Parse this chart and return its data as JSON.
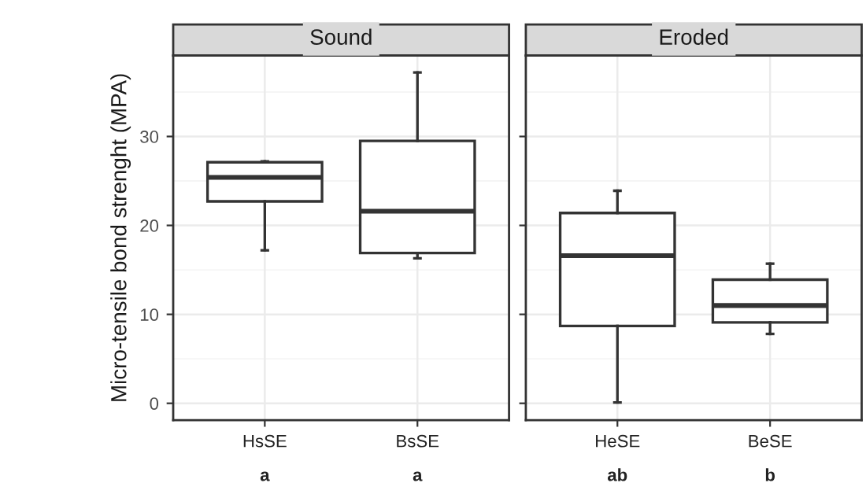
{
  "chart_data": [
    {
      "type": "box",
      "title": "Sound",
      "ylabel": "Micro-tensile bond strenght (MPA)",
      "categories": [
        "HsSE",
        "BsSE"
      ],
      "boxes": [
        {
          "low": 17.2,
          "q1": 22.7,
          "median": 25.4,
          "q3": 27.1,
          "high": 27.2
        },
        {
          "low": 16.3,
          "q1": 16.9,
          "median": 21.6,
          "q3": 29.5,
          "high": 37.2
        }
      ],
      "annotations": [
        "a",
        "a"
      ],
      "ylim": [
        -1.9,
        39.1
      ],
      "yticks": [
        0,
        10,
        20,
        30
      ],
      "grid": true
    },
    {
      "type": "box",
      "title": "Eroded",
      "categories": [
        "HeSE",
        "BeSE"
      ],
      "boxes": [
        {
          "low": 0.1,
          "q1": 8.7,
          "median": 16.6,
          "q3": 21.4,
          "high": 23.9
        },
        {
          "low": 7.8,
          "q1": 9.1,
          "median": 11.0,
          "q3": 13.9,
          "high": 15.7
        }
      ],
      "annotations": [
        "ab",
        "b"
      ],
      "ylim": [
        -1.9,
        39.1
      ],
      "yticks": [
        0,
        10,
        20,
        30
      ],
      "grid": true,
      "tick_labels": "x"
    }
  ]
}
